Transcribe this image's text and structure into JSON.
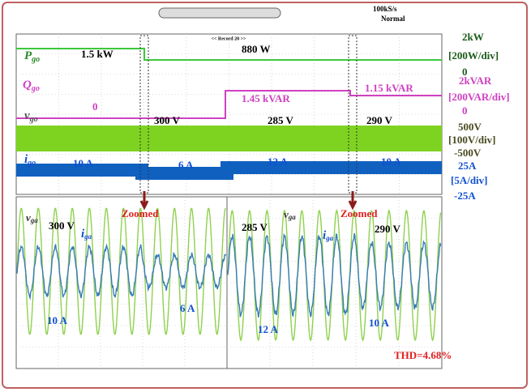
{
  "header": {
    "sample_rate": "100kS/s",
    "mode": "Normal",
    "record": "<< Record 20 >>"
  },
  "channels": [
    {
      "label": {
        "main": "P",
        "sub": "go"
      },
      "scale": {
        "top": "2kW",
        "div": "[200W/div]",
        "bottom": "0"
      },
      "annotations": [
        "1.5 kW",
        "880 W"
      ]
    },
    {
      "label": {
        "main": "Q",
        "sub": "go"
      },
      "scale": {
        "top": "2kVAR",
        "div": "[200VAR/div]",
        "bottom": "0"
      },
      "annotations": [
        "0",
        "1.45 kVAR",
        "1.15 kVAR"
      ]
    },
    {
      "label": {
        "main": "v",
        "sub": "go"
      },
      "scale": {
        "top": "500V",
        "div": "[100V/div]",
        "bottom": "-500V"
      },
      "annotations": [
        "300 V",
        "285 V",
        "290 V"
      ]
    },
    {
      "label": {
        "main": "i",
        "sub": "go"
      },
      "scale": {
        "top": "25A",
        "div": "[5A/div]",
        "bottom": "-25A"
      },
      "annotations": [
        "10 A",
        "6 A",
        "12 A",
        "10 A"
      ]
    }
  ],
  "zoom_markers": [
    "Zoomed",
    "Zoomed"
  ],
  "zoom_left": {
    "v_label": {
      "main": "v",
      "sub": "ga"
    },
    "i_label": {
      "main": "i",
      "sub": "ga"
    },
    "annotations": [
      "300 V",
      "10 A",
      "6 A"
    ]
  },
  "zoom_right": {
    "v_label": {
      "main": "v",
      "sub": "ga"
    },
    "i_label": {
      "main": "i",
      "sub": "ga"
    },
    "annotations": [
      "285 V",
      "290 V",
      "12 A",
      "10 A"
    ],
    "thd": "THD=4.68%"
  }
}
